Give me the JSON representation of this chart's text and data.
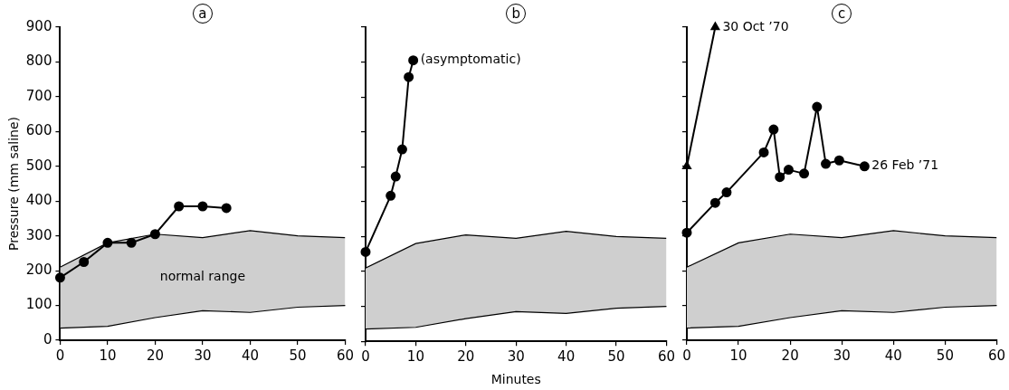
{
  "chart_data": [
    {
      "type": "line",
      "title": "a",
      "ylabel": "Pressure (mm saline)",
      "xlim": [
        0,
        60
      ],
      "xticks": [
        0,
        10,
        20,
        30,
        40,
        50,
        60
      ],
      "ylim": [
        0,
        900
      ],
      "yticks": [
        0,
        100,
        200,
        300,
        400,
        500,
        600,
        700,
        800,
        900
      ],
      "grid": false,
      "marker": "circle",
      "series": [
        {
          "color": "#000000",
          "marker": "none",
          "x": [
            0,
            10,
            20,
            30,
            40,
            50,
            60
          ],
          "values": [
            35,
            40,
            65,
            85,
            80,
            95,
            100
          ]
        },
        {
          "type": "area",
          "color": "#cfcfcf",
          "marker": "none",
          "x": [
            0,
            10,
            20,
            30,
            40,
            50,
            60
          ],
          "values": [
            210,
            280,
            305,
            295,
            315,
            300,
            295
          ]
        },
        {
          "color": "#000000",
          "x": [
            0,
            5,
            10,
            15,
            20,
            25,
            30,
            35
          ],
          "values": [
            180,
            225,
            280,
            280,
            305,
            385,
            385,
            380
          ]
        }
      ],
      "annotations": [
        "normal range"
      ]
    },
    {
      "type": "line",
      "title": "b",
      "xlabel": "Minutes",
      "xlim": [
        0,
        60
      ],
      "xticks": [
        0,
        10,
        20,
        30,
        40,
        50,
        60
      ],
      "ylim": [
        0,
        900
      ],
      "yticks": [
        0,
        100,
        200,
        300,
        400,
        500,
        600,
        700,
        800,
        900
      ],
      "grid": false,
      "marker": "circle",
      "tick_labels": "x",
      "series": [
        {
          "color": "#000000",
          "marker": "none",
          "x": [
            0,
            10,
            20,
            30,
            40,
            50,
            60
          ],
          "values": [
            35,
            40,
            65,
            85,
            80,
            95,
            100
          ]
        },
        {
          "type": "area",
          "color": "#cfcfcf",
          "marker": "none",
          "x": [
            0,
            10,
            20,
            30,
            40,
            50,
            60
          ],
          "values": [
            210,
            280,
            305,
            295,
            315,
            300,
            295
          ]
        },
        {
          "color": "#000000",
          "x": [
            0,
            5,
            6,
            7.3,
            8.6,
            9.5
          ],
          "values": [
            256,
            417,
            472,
            550,
            757,
            805
          ]
        }
      ],
      "annotations": [
        {
          "text": "(asymptomatic)",
          "x": 9.5,
          "y": 805
        }
      ]
    },
    {
      "type": "line",
      "title": "c",
      "xlim": [
        0,
        60
      ],
      "xticks": [
        0,
        10,
        20,
        30,
        40,
        50,
        60
      ],
      "ylim": [
        0,
        900
      ],
      "yticks": [
        0,
        100,
        200,
        300,
        400,
        500,
        600,
        700,
        800,
        900
      ],
      "grid": false,
      "marker": "circle",
      "tick_labels": "x",
      "series": [
        {
          "color": "#000000",
          "marker": "none",
          "x": [
            0,
            10,
            20,
            30,
            40,
            50,
            60
          ],
          "values": [
            35,
            40,
            65,
            85,
            80,
            95,
            100
          ]
        },
        {
          "type": "area",
          "color": "#cfcfcf",
          "marker": "none",
          "x": [
            0,
            10,
            20,
            30,
            40,
            50,
            60
          ],
          "values": [
            210,
            280,
            305,
            295,
            315,
            300,
            295
          ]
        },
        {
          "color": "#000000",
          "marker": "triangle",
          "x": [
            0,
            5.5
          ],
          "values": [
            500,
            900
          ]
        },
        {
          "color": "#000000",
          "x": [
            0,
            5.5,
            7.7,
            14.9,
            16.8,
            18,
            19.7,
            22.7,
            25.2,
            26.9,
            29.5,
            34.4
          ],
          "values": [
            309,
            395,
            425,
            540,
            606,
            469,
            490,
            479,
            671,
            507,
            517,
            500
          ]
        }
      ],
      "annotations": [
        {
          "text": "30 Oct ’70",
          "x": 5.5,
          "y": 900
        },
        {
          "text": "26 Feb ’71",
          "x": 34.4,
          "y": 500
        }
      ]
    }
  ]
}
